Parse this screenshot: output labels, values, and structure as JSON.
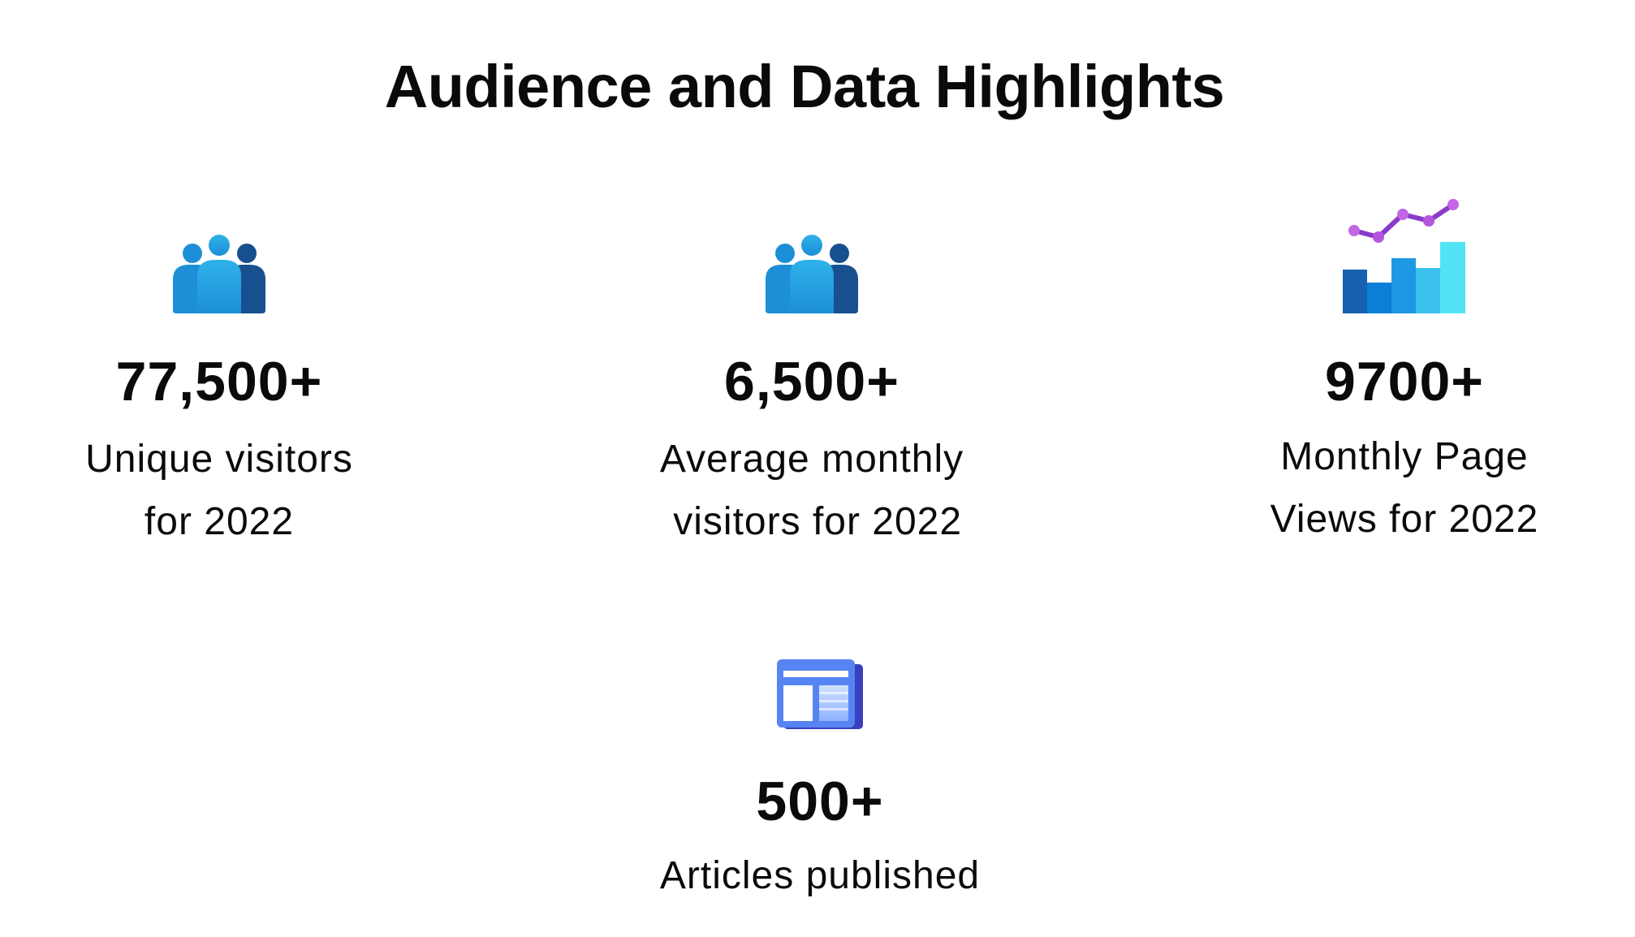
{
  "title": "Audience and Data Highlights",
  "stats": [
    {
      "icon": "people-group-icon",
      "value": "77,500+",
      "caption_lines": [
        "Unique visitors",
        "for 2022"
      ]
    },
    {
      "icon": "people-group-icon",
      "value": "6,500+",
      "caption_lines": [
        "Average monthly",
        " visitors for 2022"
      ]
    },
    {
      "icon": "bar-line-chart-icon",
      "value": "9700+",
      "caption_lines": [
        "Monthly Page",
        "Views for 2022"
      ]
    },
    {
      "icon": "newspaper-layout-icon",
      "value": "500+",
      "caption_lines": [
        "Articles published"
      ]
    }
  ],
  "colors": {
    "text": "#0a0a0a",
    "people_light": "#2aa8e6",
    "people_dark": "#1a5e9e",
    "chart_purple": "#a24ad8",
    "chart_cyan": "#52e3f5",
    "article_blue": "#4f7cf0"
  }
}
